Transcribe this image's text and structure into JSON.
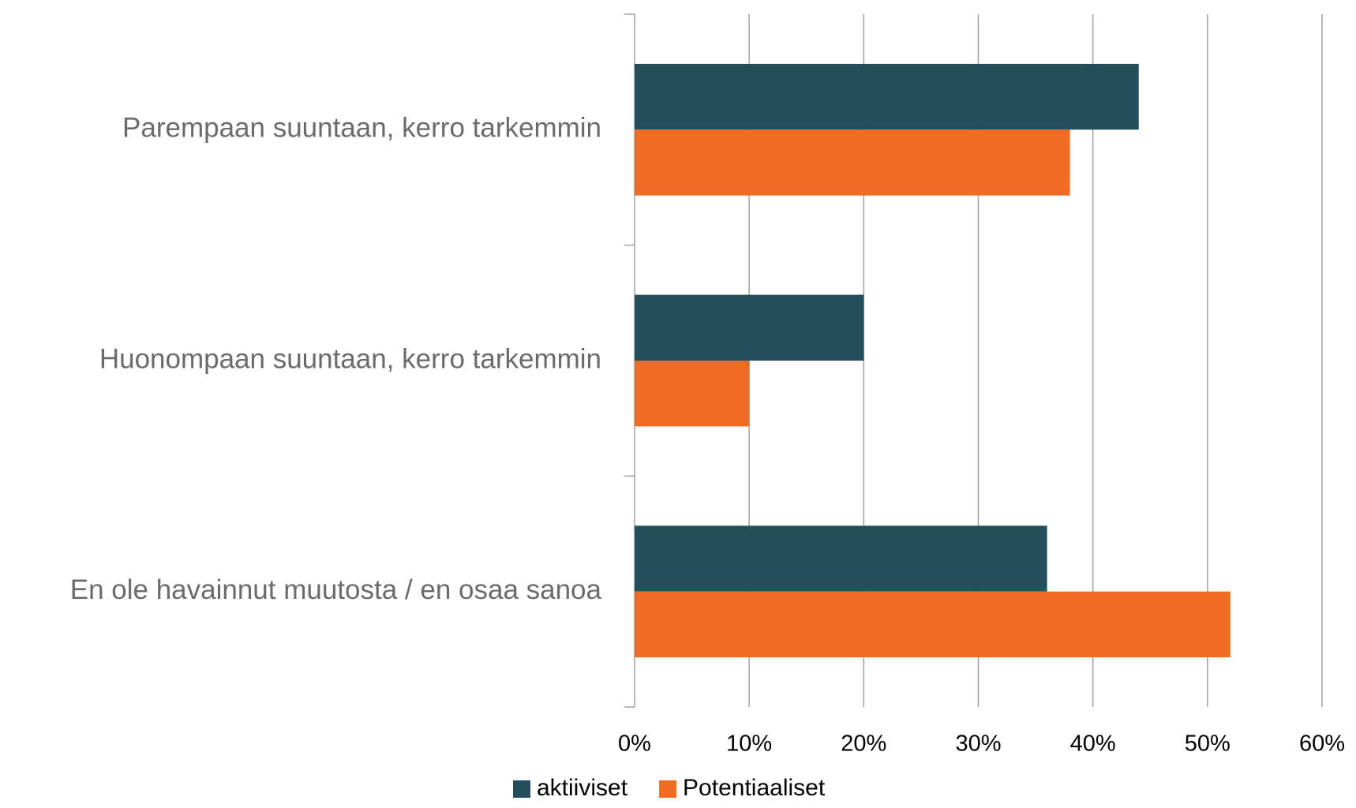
{
  "chart_data": {
    "type": "hbar",
    "categories": [
      "Parempaan suuntaan, kerro tarkemmin",
      "Huonompaan suuntaan, kerro tarkemmin",
      "En ole havainnut muutosta / en osaa sanoa"
    ],
    "series": [
      {
        "name": "aktiiviset",
        "color": "#234e5c",
        "values": [
          44,
          20,
          36
        ]
      },
      {
        "name": "Potentiaaliset",
        "color": "#f26b23",
        "values": [
          38,
          10,
          52
        ]
      }
    ],
    "xlim": [
      0,
      60
    ],
    "xticks": [
      {
        "value": 0,
        "label": "0%"
      },
      {
        "value": 10,
        "label": "10%"
      },
      {
        "value": 20,
        "label": "20%"
      },
      {
        "value": 30,
        "label": "30%"
      },
      {
        "value": 40,
        "label": "40%"
      },
      {
        "value": 50,
        "label": "50%"
      },
      {
        "value": 60,
        "label": "60%"
      }
    ],
    "grid": true,
    "legend": "bottom"
  }
}
